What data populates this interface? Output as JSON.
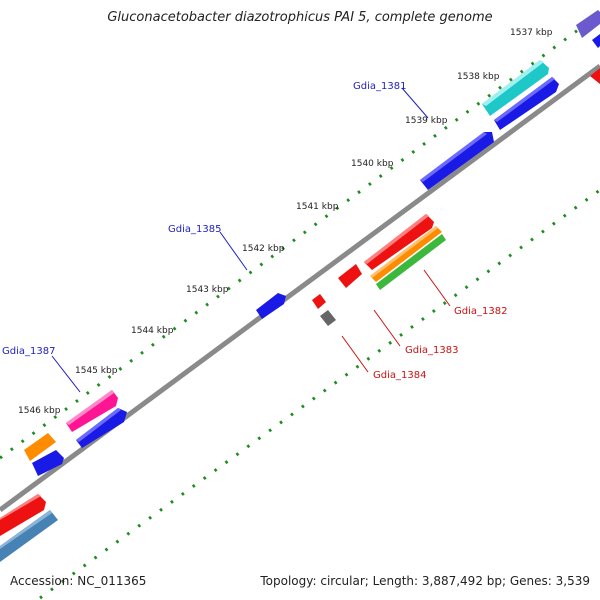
{
  "title": "Gluconacetobacter diazotrophicus PAI 5, complete genome",
  "footer": {
    "accession": "Accession: NC_011365",
    "topology": "Topology: circular; Length: 3,887,492 bp; Genes: 3,539"
  },
  "kbp_labels": [
    "1537 kbp",
    "1538 kbp",
    "1539 kbp",
    "1540 kbp",
    "1541 kbp",
    "1542 kbp",
    "1543 kbp",
    "1544 kbp",
    "1545 kbp",
    "1546 kbp"
  ],
  "gene_labels": {
    "gdia_1381": "Gdia_1381",
    "gdia_1385": "Gdia_1385",
    "gdia_1387": "Gdia_1387",
    "gdia_1382": "Gdia_1382",
    "gdia_1383": "Gdia_1383",
    "gdia_1384": "Gdia_1384"
  },
  "colors": {
    "backbone": "#8a8a8a",
    "blue": "#1a1ae6",
    "cyan": "#1fc8c8",
    "purple": "#6a5acd",
    "red": "#ee1111",
    "orange": "#ff8c00",
    "green": "#3cb83c",
    "magenta": "#ff1493",
    "steel": "#4682b4",
    "gray": "#666666",
    "dots": "#1e8c1e"
  }
}
